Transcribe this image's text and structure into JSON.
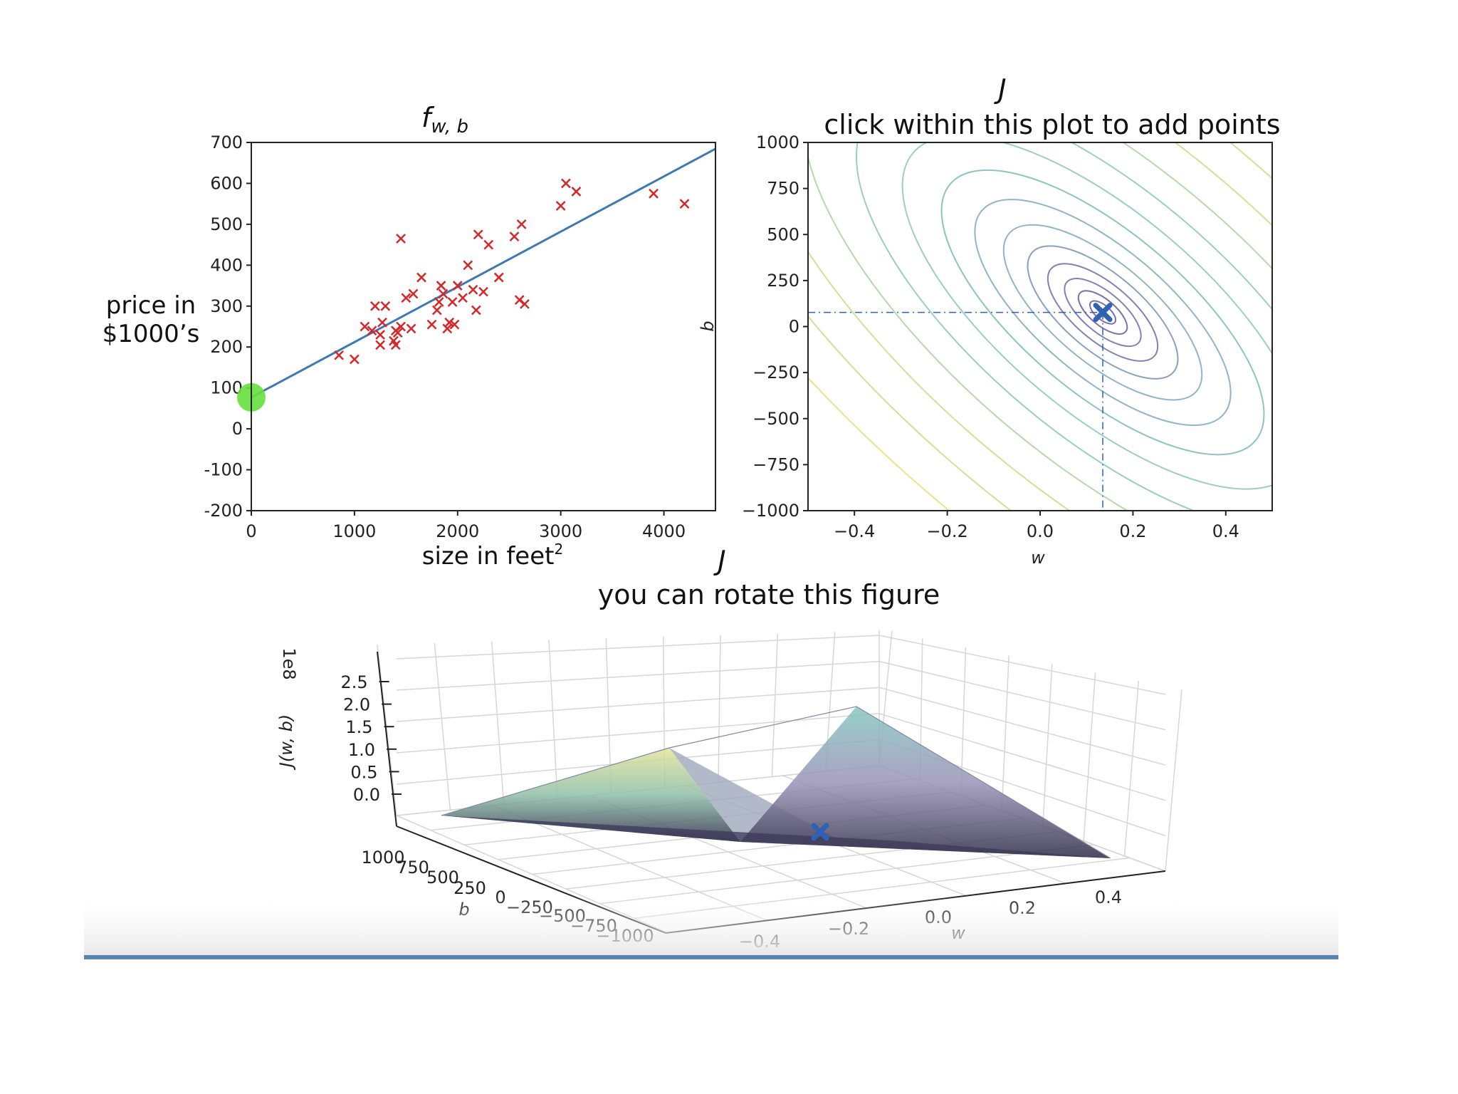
{
  "colors": {
    "line": "#3d7ab3",
    "point": "#d62728",
    "intercept_dot": "#66e03c",
    "cost_marker": "#2f62b0",
    "bottom_bar": "#5b82b8"
  },
  "chart_data": [
    {
      "type": "scatter",
      "title_main": "f",
      "title_sub": "w, b",
      "ylabel_lines": [
        "price in",
        "$1000’s"
      ],
      "xlabel": "size in feet",
      "xlabel_sup": "2",
      "xlim": [
        0,
        4500
      ],
      "ylim": [
        -200,
        700
      ],
      "xticks": [
        "0",
        "1000",
        "2000",
        "3000",
        "4000"
      ],
      "xtick_values": [
        0,
        1000,
        2000,
        3000,
        4000
      ],
      "yticks": [
        "700",
        "600",
        "500",
        "400",
        "300",
        "200",
        "100",
        "0",
        "-100",
        "-200"
      ],
      "ytick_values": [
        700,
        600,
        500,
        400,
        300,
        200,
        100,
        0,
        -100,
        -200
      ],
      "fit_line": {
        "w": 0.135,
        "b": 77
      },
      "intercept_point": [
        0,
        77
      ],
      "points": [
        [
          850,
          180
        ],
        [
          1000,
          170
        ],
        [
          1100,
          250
        ],
        [
          1170,
          240
        ],
        [
          1200,
          300
        ],
        [
          1250,
          230
        ],
        [
          1250,
          205
        ],
        [
          1270,
          260
        ],
        [
          1300,
          300
        ],
        [
          1380,
          215
        ],
        [
          1400,
          205
        ],
        [
          1400,
          240
        ],
        [
          1420,
          235
        ],
        [
          1450,
          250
        ],
        [
          1450,
          465
        ],
        [
          1550,
          245
        ],
        [
          1500,
          320
        ],
        [
          1570,
          330
        ],
        [
          1650,
          370
        ],
        [
          1750,
          255
        ],
        [
          1800,
          290
        ],
        [
          1820,
          310
        ],
        [
          1840,
          350
        ],
        [
          1860,
          330
        ],
        [
          1900,
          245
        ],
        [
          1920,
          260
        ],
        [
          1950,
          310
        ],
        [
          1970,
          255
        ],
        [
          2000,
          350
        ],
        [
          2050,
          320
        ],
        [
          2100,
          400
        ],
        [
          2150,
          340
        ],
        [
          2180,
          290
        ],
        [
          2200,
          475
        ],
        [
          2250,
          335
        ],
        [
          2300,
          450
        ],
        [
          2400,
          370
        ],
        [
          2550,
          470
        ],
        [
          2600,
          315
        ],
        [
          2620,
          500
        ],
        [
          2650,
          305
        ],
        [
          3000,
          545
        ],
        [
          3050,
          600
        ],
        [
          3150,
          580
        ],
        [
          3900,
          575
        ],
        [
          4200,
          550
        ]
      ]
    },
    {
      "type": "contour",
      "title_top": "J",
      "title": "click within this plot to add points",
      "xlabel": "w",
      "ylabel": "b",
      "xlim": [
        -0.5,
        0.5
      ],
      "ylim": [
        -1000,
        1000
      ],
      "xticks": [
        "−0.4",
        "−0.2",
        "0.0",
        "0.2",
        "0.4"
      ],
      "xtick_values": [
        -0.4,
        -0.2,
        0.0,
        0.2,
        0.4
      ],
      "yticks": [
        "1000",
        "750",
        "500",
        "250",
        "0",
        "−250",
        "−500",
        "−750",
        "−1000"
      ],
      "ytick_values": [
        1000,
        750,
        500,
        250,
        0,
        -250,
        -500,
        -750,
        -1000
      ],
      "marker": {
        "w": 0.135,
        "b": 77
      },
      "contour_colors": [
        "#7d6fae",
        "#7f82b4",
        "#8ba0c0",
        "#8fb5c6",
        "#8fc3c2",
        "#9bcfbb",
        "#b5d9a8",
        "#d2e097",
        "#e8e488"
      ]
    },
    {
      "type": "surface3d",
      "title_top": "J",
      "title": "you can rotate this figure",
      "zlabel": "J(w, b)",
      "zscale": "1e8",
      "zticks": [
        "2.5",
        "2.0",
        "1.5",
        "1.0",
        "0.5",
        "0.0"
      ],
      "zlim": [
        0,
        2.5
      ],
      "bticks": [
        "1000",
        "750",
        "500",
        "250",
        "0",
        "−250",
        "−500",
        "−750",
        "−1000"
      ],
      "blabel": "b",
      "wticks": [
        "−0.4",
        "−0.2",
        "0.0",
        "0.2",
        "0.4"
      ],
      "wlabel": "w",
      "marker": {
        "w": 0.135,
        "b": 77
      }
    }
  ]
}
